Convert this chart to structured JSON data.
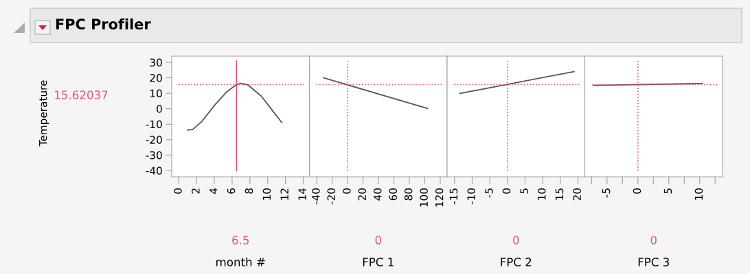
{
  "chart_data": [
    {
      "type": "line",
      "title": "FPC Profiler",
      "ylabel": "Temperature",
      "xlabel": "month #",
      "xlim": [
        -0.8,
        14.7
      ],
      "xticks": [
        0,
        2,
        4,
        6,
        8,
        10,
        12,
        14
      ],
      "ylim": [
        -44,
        34
      ],
      "yticks": [
        -40,
        -30,
        -20,
        -10,
        0,
        10,
        20,
        30
      ],
      "grid": false,
      "legend": false,
      "series": [
        {
          "color": "#555555",
          "x": [
            0.98,
            1.55,
            2.58,
            4.13,
            5.43,
            6.46,
            6.98,
            7.75,
            9.3,
            10.6,
            11.6
          ],
          "values": [
            -13.8,
            -13.5,
            -8.3,
            2.9,
            11.1,
            15.5,
            16.3,
            15.5,
            8.1,
            -1.6,
            -9.0
          ]
        }
      ],
      "ref_lines": [
        {
          "axis": "y",
          "value": 15.62037,
          "label": "15.62037",
          "color": "#f0506e",
          "line_style": "dotted"
        },
        {
          "axis": "x",
          "value": 6.5,
          "label": "6.5",
          "color": "#f0506e",
          "line_style": "solid"
        }
      ]
    },
    {
      "type": "line",
      "xlabel": "FPC 1",
      "xlim": [
        -49.5,
        128.9
      ],
      "xticks": [
        -40,
        -20,
        0,
        20,
        40,
        60,
        80,
        100,
        120
      ],
      "ylim": [
        -44,
        34
      ],
      "tick_labels": "x",
      "grid": false,
      "legend": false,
      "series": [
        {
          "color": "#555555",
          "x": [
            -31.1,
            103.7
          ],
          "values": [
            20.0,
            0.2
          ]
        }
      ],
      "ref_lines": [
        {
          "axis": "y",
          "value": 15.62037,
          "color": "#f0506e",
          "line_style": "dotted"
        },
        {
          "axis": "x",
          "value": 0,
          "label": "0",
          "color": "#f0506e",
          "line_style": "dotted"
        }
      ]
    },
    {
      "type": "line",
      "xlabel": "FPC 2",
      "xlim": [
        -17.1,
        21.95
      ],
      "xticks": [
        -15,
        -10,
        -5,
        0,
        5,
        10,
        15,
        20
      ],
      "ylim": [
        -44,
        34
      ],
      "tick_labels": "x",
      "grid": false,
      "legend": false,
      "series": [
        {
          "color": "#555555",
          "x": [
            -13.5,
            18.9
          ],
          "values": [
            9.9,
            24.0
          ]
        }
      ],
      "ref_lines": [
        {
          "axis": "y",
          "value": 15.62037,
          "color": "#f0506e",
          "line_style": "dotted"
        },
        {
          "axis": "x",
          "value": 0,
          "label": "0",
          "color": "#f0506e",
          "line_style": "dotted"
        }
      ]
    },
    {
      "type": "line",
      "xlabel": "FPC 3",
      "xlim": [
        -8.6,
        13.7
      ],
      "xticks": [
        {
          "value": -7.5,
          "label": null
        },
        -5,
        {
          "value": -2.5,
          "label": null
        },
        0,
        {
          "value": 2.5,
          "label": null
        },
        5,
        {
          "value": 7.5,
          "label": null
        },
        10,
        {
          "value": 12.5,
          "label": null
        }
      ],
      "ylim": [
        -44,
        34
      ],
      "tick_labels": "x",
      "grid": false,
      "legend": false,
      "series": [
        {
          "color": "#555555",
          "x": [
            -7.2,
            10.4
          ],
          "values": [
            15.1,
            16.3
          ]
        }
      ],
      "ref_lines": [
        {
          "axis": "y",
          "value": 15.62037,
          "color": "#f0506e",
          "line_style": "dotted"
        },
        {
          "axis": "x",
          "value": 0,
          "label": "0",
          "color": "#f0506e",
          "line_style": "dotted"
        }
      ]
    }
  ]
}
